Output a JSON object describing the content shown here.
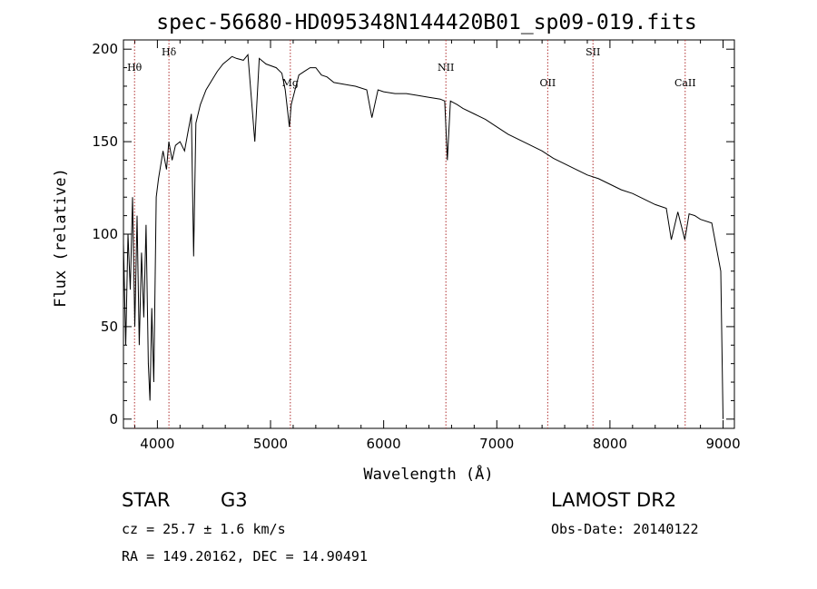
{
  "chart_data": {
    "type": "line",
    "title": "spec-56680-HD095348N144420B01_sp09-019.fits",
    "xlabel": "Wavelength (Å)",
    "ylabel": "Flux (relative)",
    "xlim": [
      3700,
      9100
    ],
    "ylim": [
      -5,
      205
    ],
    "xticks": [
      4000,
      5000,
      6000,
      7000,
      8000,
      9000
    ],
    "yticks": [
      0,
      50,
      100,
      150,
      200
    ],
    "grid": false,
    "series": [
      {
        "x": [
          3700,
          3720,
          3740,
          3760,
          3780,
          3800,
          3820,
          3840,
          3860,
          3880,
          3900,
          3920,
          3934,
          3950,
          3968,
          3990,
          4010,
          4050,
          4080,
          4101,
          4130,
          4160,
          4200,
          4240,
          4270,
          4300,
          4320,
          4340,
          4380,
          4430,
          4480,
          4530,
          4580,
          4620,
          4660,
          4700,
          4760,
          4800,
          4861,
          4900,
          4960,
          5050,
          5100,
          5130,
          5167,
          5183,
          5250,
          5300,
          5350,
          5400,
          5450,
          5500,
          5560,
          5650,
          5750,
          5850,
          5890,
          5896,
          5950,
          6000,
          6100,
          6200,
          6300,
          6400,
          6500,
          6540,
          6563,
          6590,
          6650,
          6700,
          6800,
          6900,
          7000,
          7100,
          7200,
          7300,
          7400,
          7500,
          7600,
          7700,
          7800,
          7900,
          8000,
          8100,
          8200,
          8300,
          8400,
          8498,
          8542,
          8600,
          8662,
          8700,
          8750,
          8800,
          8900,
          8980,
          9000
        ],
        "y": [
          95,
          40,
          100,
          70,
          120,
          50,
          110,
          40,
          90,
          55,
          105,
          30,
          10,
          60,
          20,
          120,
          130,
          145,
          135,
          150,
          140,
          148,
          150,
          145,
          155,
          165,
          88,
          160,
          170,
          178,
          183,
          188,
          192,
          194,
          196,
          195,
          194,
          197,
          150,
          195,
          192,
          190,
          187,
          178,
          158,
          170,
          186,
          188,
          190,
          190,
          186,
          185,
          182,
          181,
          180,
          178,
          165,
          163,
          178,
          177,
          176,
          176,
          175,
          174,
          173,
          172,
          140,
          172,
          170,
          168,
          165,
          162,
          158,
          154,
          151,
          148,
          145,
          141,
          138,
          135,
          132,
          130,
          127,
          124,
          122,
          119,
          116,
          114,
          97,
          112,
          97,
          111,
          110,
          108,
          106,
          80,
          0
        ]
      }
    ],
    "line_markers": [
      {
        "label": "Hθ",
        "x": 3798
      },
      {
        "label": "Hδ",
        "x": 4102
      },
      {
        "label": "Mg",
        "x": 5175
      },
      {
        "label": "NII",
        "x": 6550
      },
      {
        "label": "OII",
        "x": 7450
      },
      {
        "label": "SII",
        "x": 7850
      },
      {
        "label": "CaII",
        "x": 8665
      }
    ]
  },
  "info": {
    "object_class": "STAR",
    "subclass": "G3",
    "survey": "LAMOST DR2",
    "cz": "cz = 25.7 ± 1.6 km/s",
    "obs_date": "Obs-Date: 20140122",
    "coords": "RA = 149.20162, DEC =  14.90491"
  }
}
